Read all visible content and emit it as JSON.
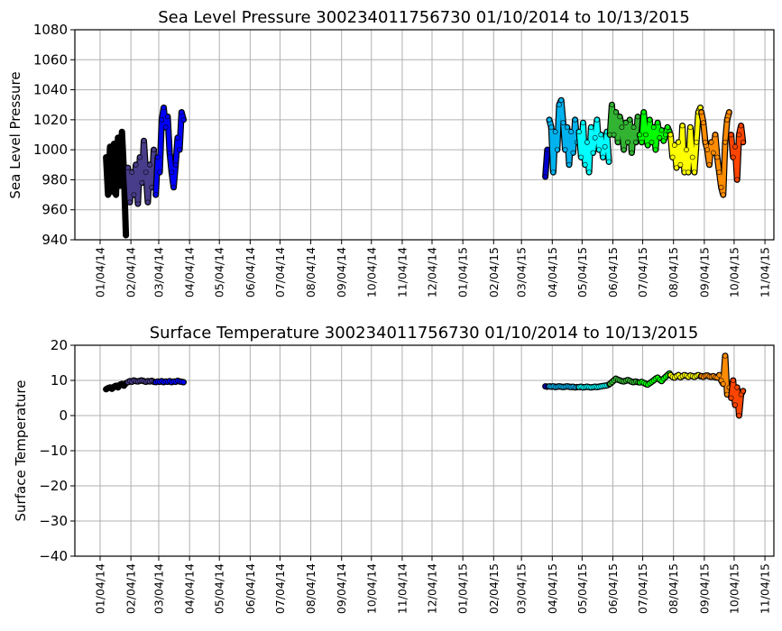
{
  "chart_data": [
    {
      "type": "scatter",
      "title": "Sea Level Pressure 300234011756730  01/10/2014 to 10/13/2015",
      "xlabel": "",
      "ylabel": "Sea Level Pressure",
      "x_units": "days since 2014-01-01",
      "xlim": [
        -22.4,
        681
      ],
      "ylim": [
        940,
        1080
      ],
      "yticks": [
        940,
        960,
        980,
        1000,
        1020,
        1040,
        1060,
        1080
      ],
      "grid": true,
      "xticks": [
        {
          "day": 3,
          "label": "01/04/14"
        },
        {
          "day": 34,
          "label": "02/04/14"
        },
        {
          "day": 62,
          "label": "03/04/14"
        },
        {
          "day": 93,
          "label": "04/04/14"
        },
        {
          "day": 123,
          "label": "05/04/14"
        },
        {
          "day": 154,
          "label": "06/04/14"
        },
        {
          "day": 184,
          "label": "07/04/14"
        },
        {
          "day": 215,
          "label": "08/04/14"
        },
        {
          "day": 246,
          "label": "09/04/14"
        },
        {
          "day": 276,
          "label": "10/04/14"
        },
        {
          "day": 307,
          "label": "11/04/14"
        },
        {
          "day": 337,
          "label": "12/04/14"
        },
        {
          "day": 368,
          "label": "01/04/15"
        },
        {
          "day": 399,
          "label": "02/04/15"
        },
        {
          "day": 427,
          "label": "03/04/15"
        },
        {
          "day": 458,
          "label": "04/04/15"
        },
        {
          "day": 488,
          "label": "05/04/15"
        },
        {
          "day": 519,
          "label": "06/04/15"
        },
        {
          "day": 549,
          "label": "07/04/15"
        },
        {
          "day": 580,
          "label": "08/04/15"
        },
        {
          "day": 611,
          "label": "09/04/15"
        },
        {
          "day": 641,
          "label": "10/04/15"
        },
        {
          "day": 672,
          "label": "11/04/15"
        }
      ],
      "series": [
        {
          "color": "#000000",
          "start_day": 9,
          "step_days": 2,
          "values": [
            995,
            970,
            1002,
            972,
            1004,
            970,
            1008,
            976,
            1012,
            985,
            943
          ]
        },
        {
          "color": "#483D8B",
          "start_day": 31,
          "step_days": 2,
          "values": [
            988,
            965,
            985,
            970,
            990,
            964,
            995,
            978,
            1006,
            985,
            965,
            990,
            975,
            1000
          ]
        },
        {
          "color": "#0000FF",
          "start_day": 59,
          "step_days": 2,
          "values": [
            970,
            995,
            985,
            1020,
            1028,
            1015,
            1022,
            998,
            985,
            975,
            990,
            1008,
            1000,
            1025,
            1020
          ]
        },
        {
          "color": "#0000CD",
          "start_day": 451,
          "step_days": 2,
          "values": [
            982,
            1000
          ]
        },
        {
          "color": "#00B2EE",
          "start_day": 455,
          "step_days": 2,
          "values": [
            1020,
            1015,
            985,
            1012,
            1000,
            1030,
            1033,
            1018,
            1000,
            1015,
            990,
            1012,
            998,
            1020,
            1005
          ]
        },
        {
          "color": "#00FFFF",
          "start_day": 485,
          "step_days": 2,
          "values": [
            1012,
            995,
            1018,
            990,
            1005,
            985,
            1015,
            998,
            1008,
            1020,
            1000,
            1010,
            995,
            1002,
            1012,
            992
          ]
        },
        {
          "color": "#32B432",
          "start_day": 516,
          "step_days": 2,
          "values": [
            1010,
            1030,
            1010,
            1025,
            1005,
            1022,
            1015,
            1000,
            1018,
            1005,
            1020,
            998,
            1015,
            1005,
            1022
          ]
        },
        {
          "color": "#00FF00",
          "start_day": 546,
          "step_days": 2,
          "values": [
            1010,
            1005,
            1025,
            1010,
            1003,
            1020,
            1005,
            1015,
            1000,
            1018,
            1008,
            1013,
            1006,
            1010,
            1015,
            1012
          ]
        },
        {
          "color": "#FFFF00",
          "start_day": 577,
          "step_days": 2,
          "values": [
            1010,
            995,
            1003,
            988,
            1005,
            990,
            1016,
            985,
            1000,
            985,
            1015,
            995,
            985,
            1005,
            1025,
            1028
          ]
        },
        {
          "color": "#FF8C00",
          "start_day": 608,
          "step_days": 2,
          "values": [
            1025,
            1018,
            1005,
            1000,
            990,
            1005,
            998,
            1010,
            995,
            985,
            975,
            970,
            1005,
            1020,
            1025
          ]
        },
        {
          "color": "#FF4500",
          "start_day": 638,
          "step_days": 2,
          "values": [
            1010,
            995,
            1002,
            980,
            1010,
            1016,
            1005
          ]
        }
      ]
    },
    {
      "type": "scatter",
      "title": "Surface Temperature 300234011756730  01/10/2014 to 10/13/2015",
      "xlabel": "",
      "ylabel": "Surface Temperature",
      "x_units": "days since 2014-01-01",
      "xlim": [
        -22.4,
        681
      ],
      "ylim": [
        -40,
        20
      ],
      "yticks": [
        -40,
        -30,
        -20,
        -10,
        0,
        10,
        20
      ],
      "grid": true,
      "xticks": [
        {
          "day": 3,
          "label": "01/04/14"
        },
        {
          "day": 34,
          "label": "02/04/14"
        },
        {
          "day": 62,
          "label": "03/04/14"
        },
        {
          "day": 93,
          "label": "04/04/14"
        },
        {
          "day": 123,
          "label": "05/04/14"
        },
        {
          "day": 154,
          "label": "06/04/14"
        },
        {
          "day": 184,
          "label": "07/04/14"
        },
        {
          "day": 215,
          "label": "08/04/14"
        },
        {
          "day": 246,
          "label": "09/04/14"
        },
        {
          "day": 276,
          "label": "10/04/14"
        },
        {
          "day": 307,
          "label": "11/04/14"
        },
        {
          "day": 337,
          "label": "12/04/14"
        },
        {
          "day": 368,
          "label": "01/04/15"
        },
        {
          "day": 399,
          "label": "02/04/15"
        },
        {
          "day": 427,
          "label": "03/04/15"
        },
        {
          "day": 458,
          "label": "04/04/15"
        },
        {
          "day": 488,
          "label": "05/04/15"
        },
        {
          "day": 519,
          "label": "06/04/15"
        },
        {
          "day": 549,
          "label": "07/04/15"
        },
        {
          "day": 580,
          "label": "08/04/15"
        },
        {
          "day": 611,
          "label": "09/04/15"
        },
        {
          "day": 641,
          "label": "10/04/15"
        },
        {
          "day": 672,
          "label": "11/04/15"
        }
      ],
      "series": [
        {
          "color": "#000000",
          "start_day": 9,
          "step_days": 2,
          "values": [
            7.5,
            7.8,
            8,
            7.6,
            8.2,
            8.5,
            8,
            8.8,
            9,
            8.5,
            9.2
          ]
        },
        {
          "color": "#483D8B",
          "start_day": 31,
          "step_days": 2,
          "values": [
            9.5,
            9.8,
            9.6,
            10,
            9.8,
            9.7,
            9.9,
            10,
            9.8,
            9.6,
            9.8,
            9.7,
            9.9,
            9.6
          ]
        },
        {
          "color": "#0000FF",
          "start_day": 59,
          "step_days": 2,
          "values": [
            9.5,
            9.7,
            9.6,
            9.8,
            9.5,
            9.7,
            9.6,
            9.8,
            9.5,
            9.7,
            9.6,
            9.9,
            9.7,
            9.6,
            9.5
          ]
        },
        {
          "color": "#0000CD",
          "start_day": 451,
          "step_days": 2,
          "values": [
            8.3,
            8.2
          ]
        },
        {
          "color": "#00B2EE",
          "start_day": 455,
          "step_days": 2,
          "values": [
            8.3,
            8.2,
            8.3,
            8.1,
            8.2,
            8.3,
            8.2,
            8.1,
            8.2,
            8.3,
            8.2,
            8.1,
            8.2,
            8.0,
            8.1
          ]
        },
        {
          "color": "#00FFFF",
          "start_day": 485,
          "step_days": 2,
          "values": [
            8.1,
            8.2,
            8.0,
            8.1,
            8.2,
            8.1,
            8.0,
            8.1,
            8.2,
            8.1,
            8.2,
            8.3,
            8.4,
            8.5,
            8.6,
            8.8
          ]
        },
        {
          "color": "#32B432",
          "start_day": 516,
          "step_days": 2,
          "values": [
            9,
            9.5,
            10,
            10.5,
            10.2,
            10,
            9.8,
            9.7,
            9.9,
            10.1,
            9.9,
            9.6,
            9.5,
            9.7,
            9.5
          ]
        },
        {
          "color": "#00FF00",
          "start_day": 546,
          "step_days": 2,
          "values": [
            9.4,
            9.6,
            9.3,
            9,
            8.8,
            9.2,
            9.6,
            10,
            10.5,
            10.8,
            10.2,
            9.8,
            10.5,
            11,
            11.5,
            12
          ]
        },
        {
          "color": "#FFFF00",
          "start_day": 577,
          "step_days": 2,
          "values": [
            11.5,
            11,
            10.8,
            11.2,
            11.5,
            10.9,
            11.2,
            11.5,
            11.3,
            11,
            11.4,
            11.2,
            11,
            11.3,
            11.5,
            11.2
          ]
        },
        {
          "color": "#FF8C00",
          "start_day": 608,
          "step_days": 2,
          "values": [
            11.2,
            11,
            11.3,
            11.4,
            11.1,
            11,
            11.2,
            10.9,
            10.8,
            11.5,
            10,
            9,
            17,
            6,
            8
          ]
        },
        {
          "color": "#FF4500",
          "start_day": 638,
          "step_days": 2,
          "values": [
            5,
            10,
            3,
            8,
            0,
            6,
            7
          ]
        }
      ]
    }
  ]
}
